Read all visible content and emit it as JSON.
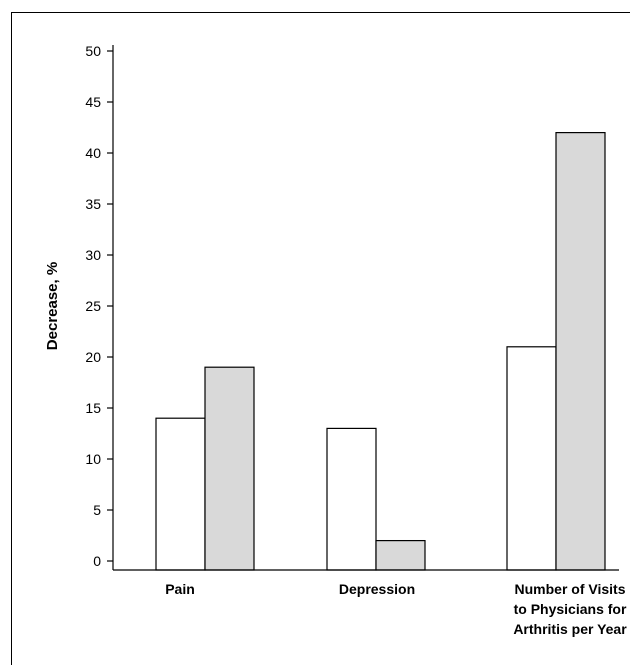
{
  "chart_data": {
    "type": "bar",
    "categories": [
      [
        "Pain"
      ],
      [
        "Depression"
      ],
      [
        "Number of Visits",
        "to Physicians for",
        "Arthritis per Year"
      ]
    ],
    "series": [
      {
        "values": [
          14,
          13,
          21
        ],
        "color": "#ffffff"
      },
      {
        "values": [
          19,
          2,
          42
        ],
        "color": "#d9d9d9"
      }
    ],
    "ylabel": "Decrease, %",
    "ylim": [
      0,
      50
    ],
    "yticks": [
      0,
      5,
      10,
      15,
      20,
      25,
      30,
      35,
      40,
      45,
      50
    ],
    "grid": false
  }
}
